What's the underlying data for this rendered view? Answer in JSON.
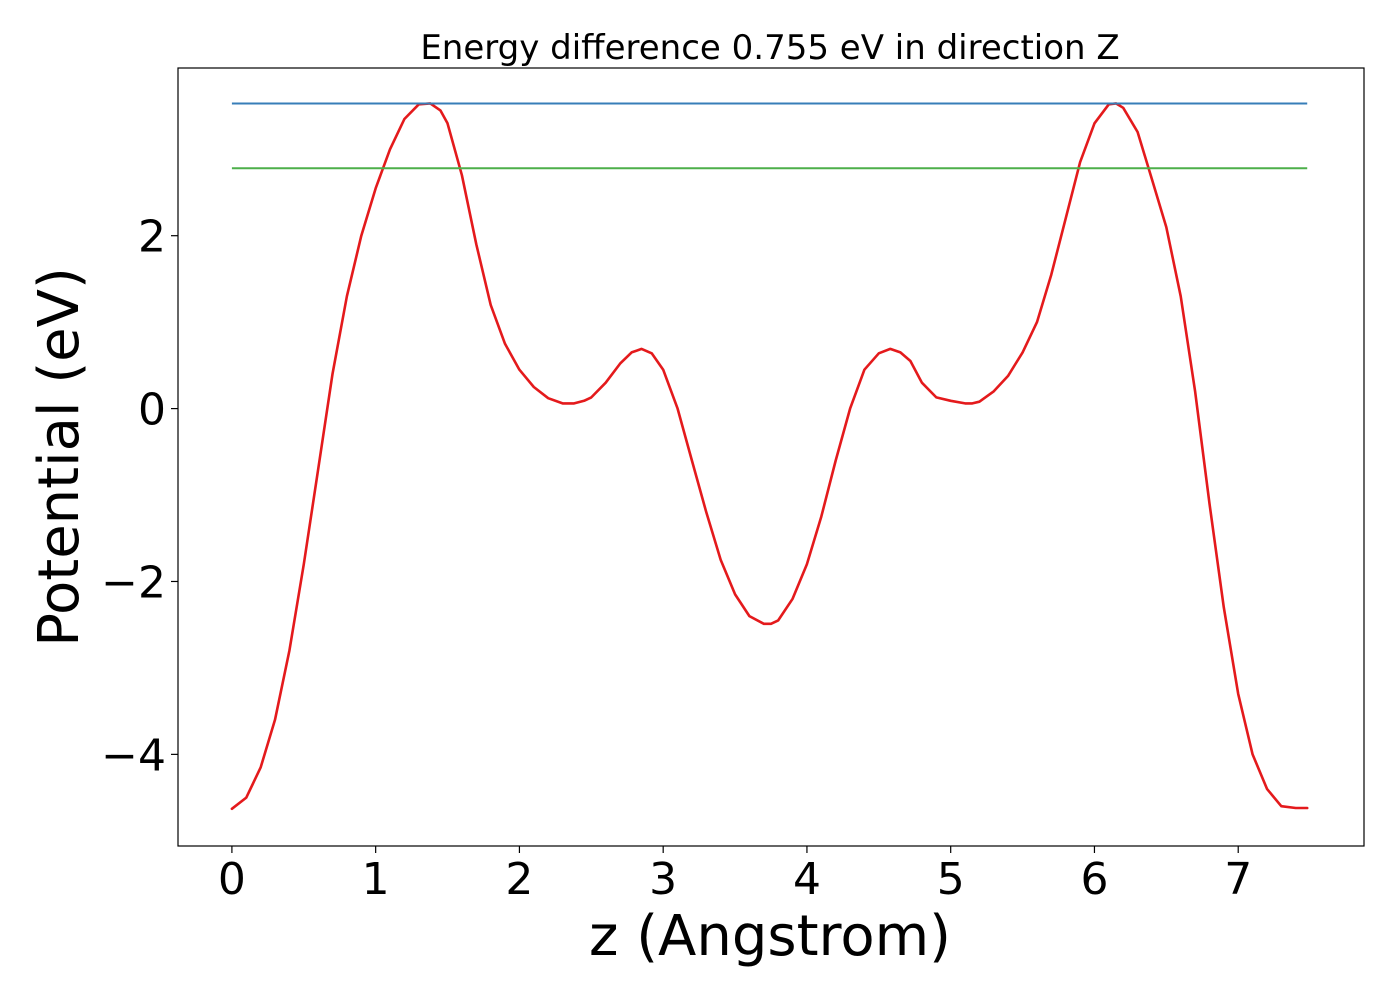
{
  "chart_data": {
    "type": "line",
    "title": "Energy difference 0.755 eV in direction Z",
    "xlabel": "z (Angstrom)",
    "ylabel": "Potential (eV)",
    "xlim": [
      -0.375,
      7.875
    ],
    "ylim": [
      -5.06,
      3.94
    ],
    "xticks": [
      0,
      1,
      2,
      3,
      4,
      5,
      6,
      7
    ],
    "yticks": [
      -4,
      -2,
      0,
      2
    ],
    "ytick_labels": [
      "−4",
      "−2",
      "0",
      "2"
    ],
    "grid": false,
    "colors": {
      "potential": "#e41a1c",
      "maximum": "#377eb8",
      "average": "#4daf4a"
    },
    "series": [
      {
        "style": "line",
        "color": "#e41a1c",
        "x": [
          0.0,
          0.1,
          0.2,
          0.3,
          0.4,
          0.5,
          0.6,
          0.7,
          0.8,
          0.9,
          1.0,
          1.1,
          1.2,
          1.3,
          1.38,
          1.45,
          1.5,
          1.6,
          1.7,
          1.8,
          1.9,
          2.0,
          2.1,
          2.2,
          2.3,
          2.38,
          2.45,
          2.5,
          2.6,
          2.7,
          2.78,
          2.85,
          2.92,
          3.0,
          3.1,
          3.2,
          3.3,
          3.4,
          3.5,
          3.6,
          3.7,
          3.75,
          3.8,
          3.9,
          4.0,
          4.1,
          4.2,
          4.3,
          4.4,
          4.5,
          4.58,
          4.65,
          4.72,
          4.8,
          4.9,
          5.0,
          5.1,
          5.15,
          5.2,
          5.3,
          5.4,
          5.5,
          5.6,
          5.7,
          5.8,
          5.9,
          6.0,
          6.1,
          6.15,
          6.2,
          6.3,
          6.4,
          6.5,
          6.6,
          6.7,
          6.8,
          6.9,
          7.0,
          7.1,
          7.2,
          7.3,
          7.4,
          7.48
        ],
        "y": [
          -4.63,
          -4.5,
          -4.15,
          -3.6,
          -2.8,
          -1.8,
          -0.7,
          0.4,
          1.3,
          2.0,
          2.55,
          3.0,
          3.35,
          3.52,
          3.53,
          3.45,
          3.3,
          2.7,
          1.9,
          1.2,
          0.75,
          0.45,
          0.25,
          0.12,
          0.06,
          0.06,
          0.09,
          0.13,
          0.3,
          0.52,
          0.65,
          0.69,
          0.64,
          0.45,
          0.0,
          -0.6,
          -1.2,
          -1.75,
          -2.15,
          -2.4,
          -2.49,
          -2.49,
          -2.45,
          -2.2,
          -1.8,
          -1.25,
          -0.6,
          0.0,
          0.45,
          0.64,
          0.69,
          0.65,
          0.55,
          0.3,
          0.13,
          0.09,
          0.06,
          0.06,
          0.08,
          0.2,
          0.38,
          0.65,
          1.0,
          1.55,
          2.2,
          2.85,
          3.3,
          3.52,
          3.53,
          3.48,
          3.2,
          2.65,
          2.1,
          1.3,
          0.2,
          -1.1,
          -2.3,
          -3.3,
          -4.0,
          -4.4,
          -4.6,
          -4.62,
          -4.62
        ]
      },
      {
        "style": "hline",
        "color": "#377eb8",
        "y": 3.53,
        "xrange": [
          0.0,
          7.48
        ]
      },
      {
        "style": "hline",
        "color": "#4daf4a",
        "y": 2.78,
        "xrange": [
          0.0,
          7.48
        ]
      }
    ]
  }
}
